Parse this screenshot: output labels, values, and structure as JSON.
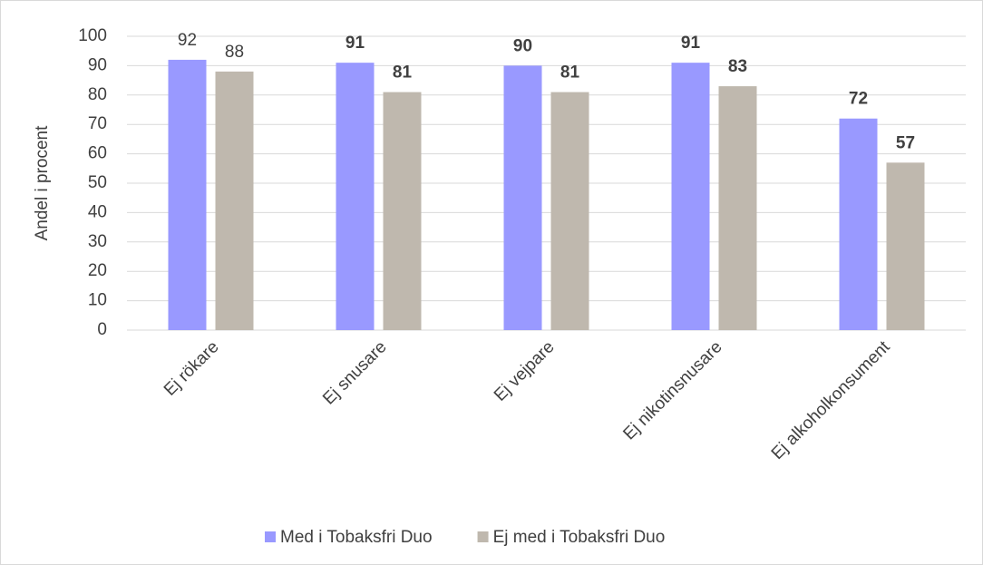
{
  "chart_data": {
    "type": "bar",
    "y_label": "Andel i procent",
    "categories": [
      "Ej rökare",
      "Ej snusare",
      "Ej vejpare",
      "Ej nikotinsnusare",
      "Ej alkoholkonsument"
    ],
    "series": [
      {
        "name": "Med i Tobaksfri Duo",
        "color": "#9999ff",
        "values": [
          92,
          91,
          90,
          91,
          72
        ]
      },
      {
        "name": "Ej med i Tobaksfri Duo",
        "color": "#bfb8ae",
        "values": [
          88,
          81,
          81,
          83,
          57
        ]
      }
    ],
    "ylim": [
      0,
      100
    ],
    "yticks": [
      0,
      10,
      20,
      30,
      40,
      50,
      60,
      70,
      80,
      90,
      100
    ],
    "grid": true,
    "legend": "bottom"
  }
}
